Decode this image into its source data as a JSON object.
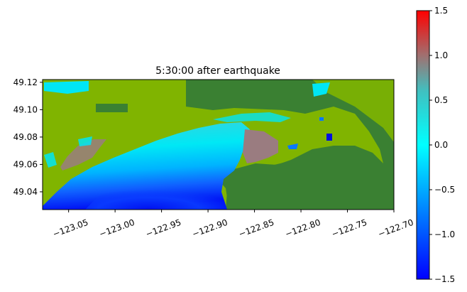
{
  "chart_data": {
    "type": "heatmap",
    "title": "5:30:00 after earthquake",
    "xlabel": "",
    "ylabel": "",
    "xlim": [
      -123.078,
      -122.7
    ],
    "ylim": [
      49.027,
      49.122
    ],
    "x_ticks": [
      {
        "value": -123.05,
        "label": "−123.05"
      },
      {
        "value": -123.0,
        "label": "−123.00"
      },
      {
        "value": -122.95,
        "label": "−122.95"
      },
      {
        "value": -122.9,
        "label": "−122.90"
      },
      {
        "value": -122.85,
        "label": "−122.85"
      },
      {
        "value": -122.8,
        "label": "−122.80"
      },
      {
        "value": -122.75,
        "label": "−122.75"
      },
      {
        "value": -122.7,
        "label": "−122.70"
      }
    ],
    "y_ticks": [
      {
        "value": 49.04,
        "label": "49.04"
      },
      {
        "value": 49.06,
        "label": "49.06"
      },
      {
        "value": 49.08,
        "label": "49.08"
      },
      {
        "value": 49.1,
        "label": "49.10"
      },
      {
        "value": 49.12,
        "label": "49.12"
      }
    ],
    "colorbar": {
      "min": -1.5,
      "max": 1.5,
      "ticks": [
        {
          "value": 1.5,
          "label": "1.5"
        },
        {
          "value": 1.0,
          "label": "1.0"
        },
        {
          "value": 0.5,
          "label": "0.5"
        },
        {
          "value": 0.0,
          "label": "0.0"
        },
        {
          "value": -0.5,
          "label": "−0.5"
        },
        {
          "value": -1.0,
          "label": "−1.0"
        },
        {
          "value": -1.5,
          "label": "−1.5"
        }
      ],
      "stops": [
        {
          "value": -1.5,
          "color": "#0000ff"
        },
        {
          "value": -0.75,
          "color": "#0080ff"
        },
        {
          "value": 0.0,
          "color": "#00ffff"
        },
        {
          "value": 0.6,
          "color": "#40c0c0"
        },
        {
          "value": 1.0,
          "color": "#a07070"
        },
        {
          "value": 1.5,
          "color": "#ff0000"
        }
      ]
    },
    "grid": false,
    "colors": {
      "land_dark": "#3a8032",
      "land_light": "#80b400",
      "water_deep": "#0014f5",
      "water_mid": "#0a78ff",
      "water_shallow": "#00e6f5",
      "surge_high": "#9a7c80"
    }
  }
}
